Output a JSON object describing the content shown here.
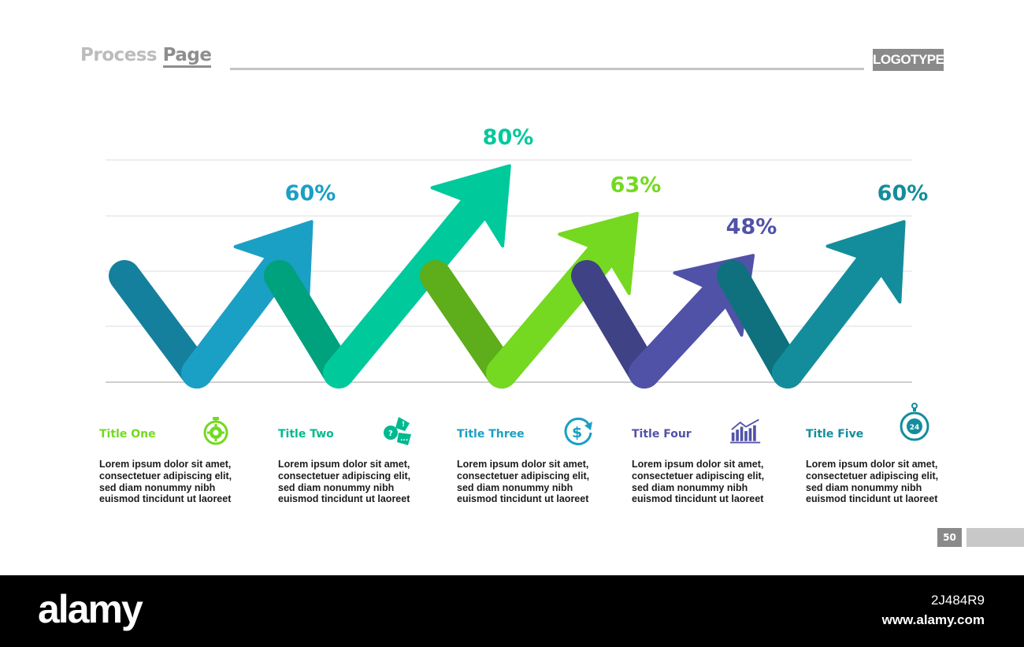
{
  "header": {
    "title_part1": "Process ",
    "title_part2": "Page",
    "logo": "LOGOTYPE"
  },
  "chart_data": {
    "type": "arrow-steps",
    "categories": [
      "Title One",
      "Title Two",
      "Title Three",
      "Title Four",
      "Title Five"
    ],
    "values": [
      60,
      80,
      63,
      48,
      60
    ],
    "labels": [
      "60%",
      "80%",
      "63%",
      "48%",
      "60%"
    ],
    "colors": [
      "#1aa0c4",
      "#00c99c",
      "#74d920",
      "#5052a8",
      "#138d9c"
    ],
    "grid": true
  },
  "columns": [
    {
      "title": "Title One",
      "icon": "stopwatch-gear-icon",
      "color": "#74d920",
      "text": [
        "Lorem ipsum dolor sit amet,",
        "consectetuer adipiscing elit,",
        "sed diam nonummy nibh",
        "euismod tincidunt ut laoreet"
      ]
    },
    {
      "title": "Title Two",
      "icon": "chat-bubbles-icon",
      "color": "#00b98f",
      "text": [
        "Lorem ipsum dolor sit amet,",
        "consectetuer adipiscing elit,",
        "sed diam nonummy nibh",
        "euismod tincidunt ut laoreet"
      ]
    },
    {
      "title": "Title Three",
      "icon": "dollar-cycle-icon",
      "color": "#1aa0c4",
      "text": [
        "Lorem ipsum dolor sit amet,",
        "consectetuer adipiscing elit,",
        "sed diam nonummy nibh",
        "euismod tincidunt ut laoreet"
      ]
    },
    {
      "title": "Title Four",
      "icon": "bar-chart-trend-icon",
      "color": "#5052a8",
      "text": [
        "Lorem ipsum dolor sit amet,",
        "consectetuer adipiscing elit,",
        "sed diam nonummy nibh",
        "euismod tincidunt ut laoreet"
      ]
    },
    {
      "title": "Title Five",
      "icon": "24-hour-stopwatch-icon",
      "color": "#138d9c",
      "text": [
        "Lorem ipsum dolor sit amet,",
        "consectetuer adipiscing elit,",
        "sed diam nonummy nibh",
        "euismod tincidunt ut laoreet"
      ]
    }
  ],
  "page_number": "50",
  "footer": {
    "brand": "alamy",
    "image_id": "2J484R9",
    "url": "www.alamy.com"
  }
}
